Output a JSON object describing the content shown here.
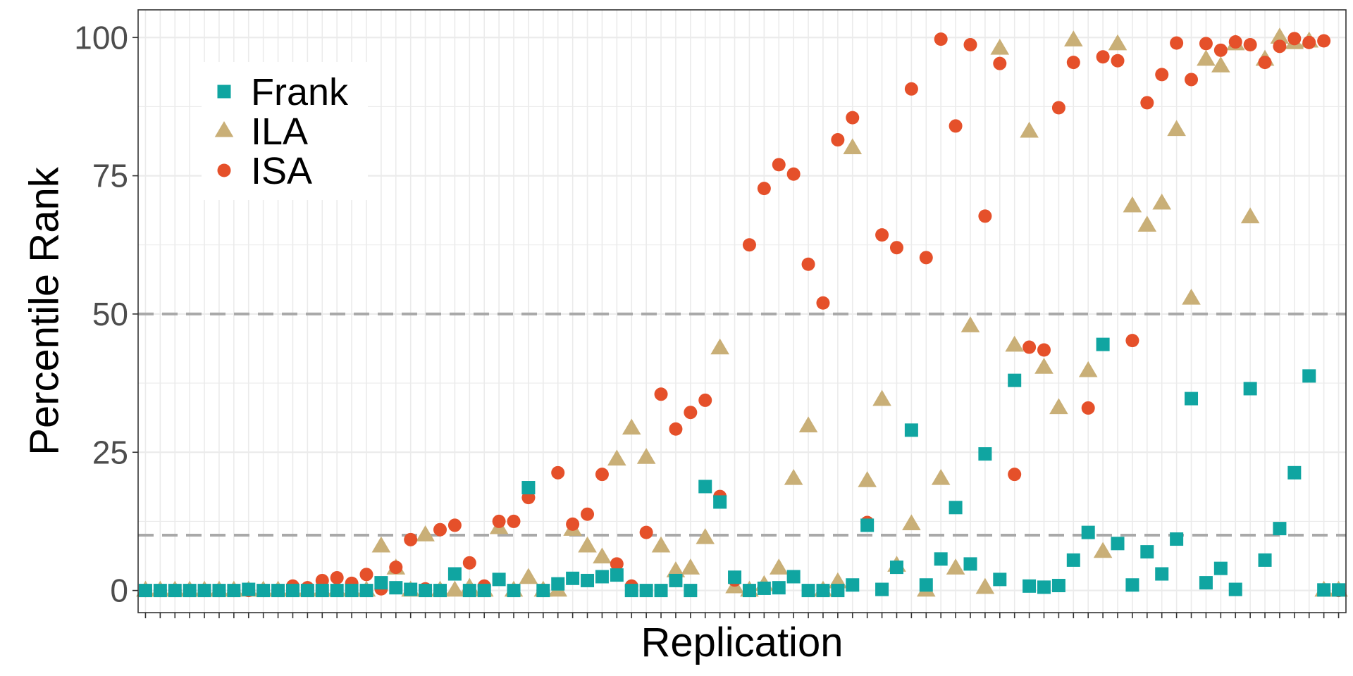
{
  "chart_data": {
    "type": "scatter",
    "title": "",
    "xlabel": "Replication",
    "ylabel": "Percentile Rank",
    "ylim": [
      -4,
      105
    ],
    "xlim": [
      0.5,
      82.5
    ],
    "yticks": [
      0,
      25,
      50,
      75,
      100
    ],
    "ytick_labels": [
      "0",
      "25",
      "50",
      "75",
      "100"
    ],
    "x_tick_labels_shown": false,
    "reference_lines": [
      10,
      50
    ],
    "grid": true,
    "legend_position": "top-left",
    "colors": {
      "Frank": "#10A5A1",
      "ILA": "#C9AF77",
      "ISA": "#E5502A",
      "reference_line": "#A9A9A9",
      "grid": "#EBEBEB",
      "panel_border": "#333333"
    },
    "x": [
      1,
      2,
      3,
      4,
      5,
      6,
      7,
      8,
      9,
      10,
      11,
      12,
      13,
      14,
      15,
      16,
      17,
      18,
      19,
      20,
      21,
      22,
      23,
      24,
      25,
      26,
      27,
      28,
      29,
      30,
      31,
      32,
      33,
      34,
      35,
      36,
      37,
      38,
      39,
      40,
      41,
      42,
      43,
      44,
      45,
      46,
      47,
      48,
      49,
      50,
      51,
      52,
      53,
      54,
      55,
      56,
      57,
      58,
      59,
      60,
      61,
      62,
      63,
      64,
      65,
      66,
      67,
      68,
      69,
      70,
      71,
      72,
      73,
      74,
      75,
      76,
      77,
      78,
      79,
      80,
      81,
      82
    ],
    "series": [
      {
        "name": "Frank",
        "marker": "square",
        "values": [
          0,
          0,
          0,
          0,
          0,
          0,
          0,
          0.2,
          0,
          0,
          0,
          0,
          0,
          0,
          0,
          0,
          1.4,
          0.5,
          0.2,
          0,
          0,
          3,
          0,
          0,
          2,
          0,
          18.6,
          0,
          1.2,
          2.2,
          1.8,
          2.5,
          2.8,
          0,
          0,
          0,
          1.8,
          0,
          18.8,
          16,
          2.4,
          0,
          0.4,
          0.5,
          2.5,
          0,
          0,
          0,
          1,
          11.8,
          0.2,
          4.2,
          29,
          1,
          5.7,
          15,
          4.8,
          24.7,
          2,
          38,
          0.8,
          0.6,
          0.9,
          5.5,
          10.5,
          44.5,
          8.5,
          1,
          7,
          3,
          9.3,
          34.7,
          1.4,
          4,
          0.2,
          36.5,
          5.5,
          11.2,
          21.3,
          38.8,
          0.1,
          0.1
        ]
      },
      {
        "name": "ILA",
        "marker": "triangle",
        "values": [
          0,
          0,
          0,
          0,
          0,
          0,
          0,
          0,
          0,
          0,
          0,
          0,
          0,
          0,
          0,
          0,
          8,
          4,
          0,
          10,
          0,
          0,
          0.5,
          0,
          11.3,
          0,
          2.3,
          0,
          0,
          11,
          8,
          6,
          23.7,
          29.3,
          24,
          8,
          3.5,
          4,
          9.5,
          43.8,
          0.6,
          0,
          1,
          4,
          20.2,
          29.7,
          0,
          1.5,
          80,
          19.8,
          34.5,
          4.5,
          12,
          0,
          20.2,
          4,
          47.8,
          0.5,
          98,
          44.3,
          83,
          40.3,
          33,
          99.5,
          39.7,
          7,
          98.8,
          69.5,
          66,
          70,
          83.3,
          52.8,
          96,
          94.8,
          98.8,
          67.5,
          96,
          100,
          99,
          99.3,
          0,
          0
        ]
      },
      {
        "name": "ISA",
        "marker": "circle",
        "values": [
          0,
          0,
          0,
          0,
          0,
          0,
          0,
          0,
          0,
          0,
          0.8,
          0.5,
          1.8,
          2.3,
          1.3,
          2.9,
          0.3,
          4.2,
          9.2,
          0.3,
          11,
          11.8,
          5,
          0.8,
          12.5,
          12.5,
          16.8,
          0,
          21.3,
          12,
          13.8,
          21,
          4.8,
          0.8,
          10.5,
          35.5,
          29.2,
          32.2,
          34.4,
          17,
          1.9,
          62.5,
          72.7,
          77,
          75.3,
          59,
          52,
          81.5,
          85.5,
          12.3,
          64.3,
          62,
          90.7,
          60.2,
          99.7,
          84,
          98.7,
          67.7,
          95.3,
          21,
          44,
          43.5,
          87.3,
          95.5,
          33,
          96.5,
          95.8,
          45.2,
          88.2,
          93.3,
          99,
          92.4,
          98.9,
          97.7,
          99.2,
          98.7,
          95.5,
          98.4,
          99.8,
          99.1,
          99.4,
          0
        ]
      }
    ]
  }
}
